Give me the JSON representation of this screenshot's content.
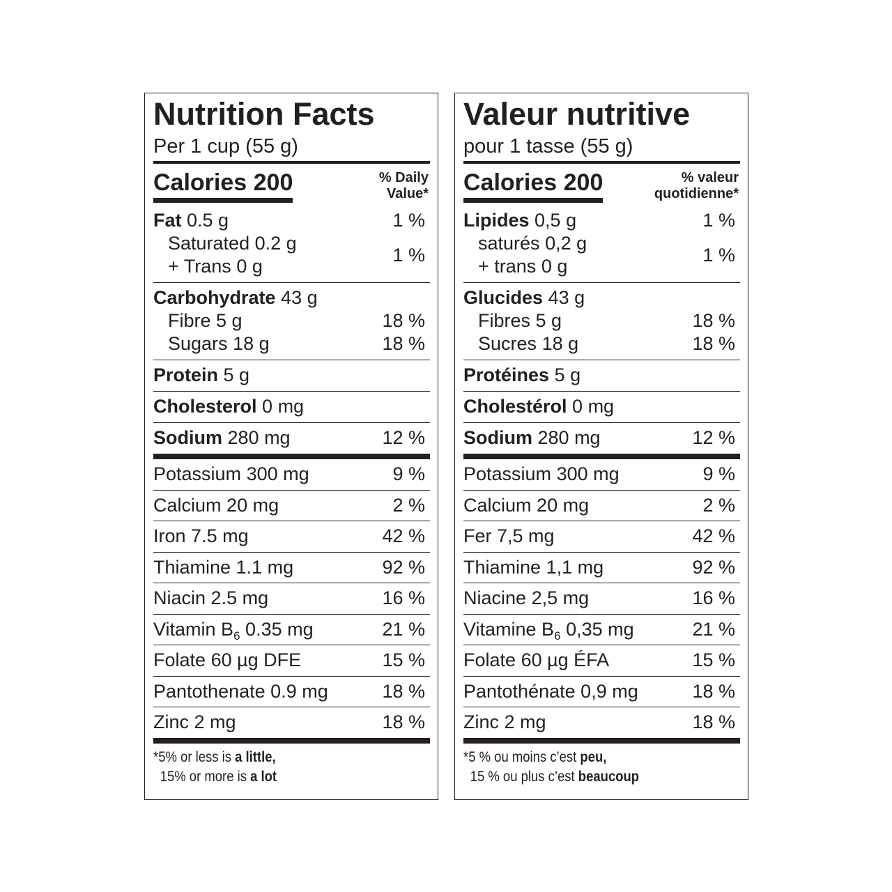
{
  "panels": [
    {
      "title": "Nutrition Facts",
      "serving": "Per 1 cup (55 g)",
      "calories": "Calories 200",
      "daily_value": [
        "% Daily",
        "Value*"
      ],
      "groups": [
        {
          "rows": [
            {
              "name": "Fat",
              "amount": "0.5 g",
              "dv": "1 %",
              "bold": true
            },
            {
              "lines": [
                {
                  "name": "Saturated",
                  "amount": "0.2 g"
                },
                {
                  "name": "+ Trans",
                  "amount": "0 g"
                }
              ],
              "dv": "1 %",
              "indent": true
            }
          ]
        },
        {
          "rows": [
            {
              "name": "Carbohydrate",
              "amount": "43 g",
              "bold": true
            },
            {
              "name": "Fibre",
              "amount": "5 g",
              "dv": "18 %",
              "indent": true
            },
            {
              "name": "Sugars",
              "amount": "18 g",
              "dv": "18 %",
              "indent": true
            }
          ]
        },
        {
          "rows": [
            {
              "name": "Protein",
              "amount": "5 g",
              "bold": true
            }
          ]
        },
        {
          "rows": [
            {
              "name": "Cholesterol",
              "amount": "0 mg",
              "bold": true
            }
          ]
        },
        {
          "rows": [
            {
              "name": "Sodium",
              "amount": "280 mg",
              "dv": "12 %",
              "bold": true
            }
          ]
        }
      ],
      "vitamins": [
        {
          "name": "Potassium",
          "amount": "300 mg",
          "dv": "9 %"
        },
        {
          "name": "Calcium",
          "amount": "20 mg",
          "dv": "2 %"
        },
        {
          "name": "Iron",
          "amount": "7.5 mg",
          "dv": "42 %"
        },
        {
          "name": "Thiamine",
          "amount": "1.1 mg",
          "dv": "92 %"
        },
        {
          "name": "Niacin",
          "amount": "2.5 mg",
          "dv": "16 %"
        },
        {
          "name": "Vitamin B",
          "sub": "6",
          "amount": "0.35 mg",
          "dv": "21 %"
        },
        {
          "name": "Folate",
          "amount": "60 µg DFE",
          "dv": "15 %"
        },
        {
          "name": "Pantothenate",
          "amount": "0.9 mg",
          "dv": "18 %"
        },
        {
          "name": "Zinc",
          "amount": "2 mg",
          "dv": "18 %"
        }
      ],
      "footnote": [
        [
          {
            "text": "*5% or less is"
          },
          {
            "text": "a little,",
            "bold": true
          }
        ],
        [
          {
            "text": "15% or more is"
          },
          {
            "text": "a lot",
            "bold": true
          }
        ]
      ]
    },
    {
      "title": "Valeur nutritive",
      "serving": "pour 1 tasse (55 g)",
      "calories": "Calories 200",
      "daily_value": [
        "% valeur",
        "quotidienne*"
      ],
      "groups": [
        {
          "rows": [
            {
              "name": "Lipides",
              "amount": "0,5 g",
              "dv": "1 %",
              "bold": true
            },
            {
              "lines": [
                {
                  "name": "saturés",
                  "amount": "0,2 g"
                },
                {
                  "name": "+ trans",
                  "amount": "0 g"
                }
              ],
              "dv": "1 %",
              "indent": true
            }
          ]
        },
        {
          "rows": [
            {
              "name": "Glucides",
              "amount": "43 g",
              "bold": true
            },
            {
              "name": "Fibres",
              "amount": "5 g",
              "dv": "18 %",
              "indent": true
            },
            {
              "name": "Sucres",
              "amount": "18 g",
              "dv": "18 %",
              "indent": true
            }
          ]
        },
        {
          "rows": [
            {
              "name": "Protéines",
              "amount": "5 g",
              "bold": true
            }
          ]
        },
        {
          "rows": [
            {
              "name": "Cholestérol",
              "amount": "0 mg",
              "bold": true
            }
          ]
        },
        {
          "rows": [
            {
              "name": "Sodium",
              "amount": "280 mg",
              "dv": "12 %",
              "bold": true
            }
          ]
        }
      ],
      "vitamins": [
        {
          "name": "Potassium",
          "amount": "300 mg",
          "dv": "9 %"
        },
        {
          "name": "Calcium",
          "amount": "20 mg",
          "dv": "2 %"
        },
        {
          "name": "Fer",
          "amount": "7,5 mg",
          "dv": "42 %"
        },
        {
          "name": "Thiamine",
          "amount": "1,1 mg",
          "dv": "92 %"
        },
        {
          "name": "Niacine",
          "amount": "2,5 mg",
          "dv": "16 %"
        },
        {
          "name": "Vitamine B",
          "sub": "6",
          "amount": "0,35 mg",
          "dv": "21 %"
        },
        {
          "name": "Folate",
          "amount": "60 µg ÉFA",
          "dv": "15 %"
        },
        {
          "name": "Pantothénate",
          "amount": "0,9 mg",
          "dv": "18 %"
        },
        {
          "name": "Zinc",
          "amount": "2 mg",
          "dv": "18 %"
        }
      ],
      "footnote": [
        [
          {
            "text": "*5 % ou moins c’est"
          },
          {
            "text": "peu,",
            "bold": true
          }
        ],
        [
          {
            "text": "15 % ou plus c’est"
          },
          {
            "text": "beaucoup",
            "bold": true
          }
        ]
      ]
    }
  ]
}
